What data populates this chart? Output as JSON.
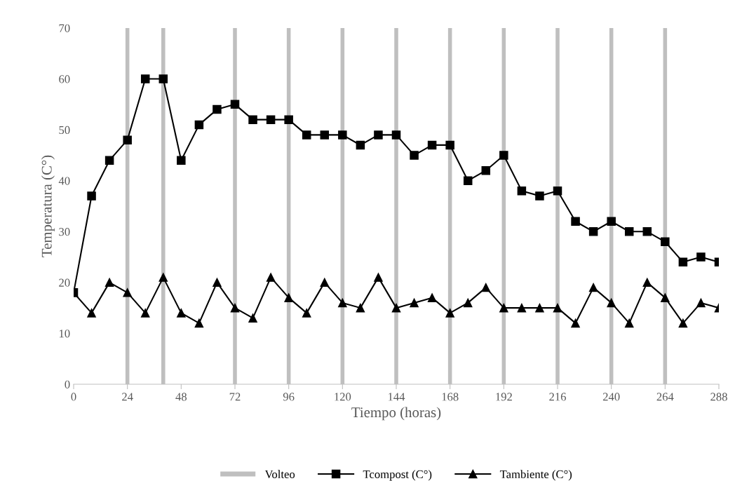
{
  "chart_data": {
    "type": "line",
    "xlabel": "Tiempo (horas)",
    "ylabel": "Temperatura (C°)",
    "x": [
      0,
      8,
      16,
      24,
      32,
      40,
      48,
      56,
      64,
      72,
      80,
      88,
      96,
      104,
      112,
      120,
      128,
      136,
      144,
      152,
      160,
      168,
      176,
      184,
      192,
      200,
      208,
      216,
      224,
      232,
      240,
      248,
      256,
      264,
      272,
      280,
      288
    ],
    "series": [
      {
        "name": "Tcompost (C°)",
        "color": "#000000",
        "marker": "square",
        "values": [
          18,
          37,
          44,
          48,
          60,
          60,
          44,
          51,
          54,
          55,
          52,
          52,
          52,
          49,
          49,
          49,
          47,
          49,
          49,
          45,
          47,
          47,
          40,
          42,
          45,
          38,
          37,
          38,
          32,
          30,
          32,
          30,
          30,
          28,
          24,
          25,
          24
        ]
      },
      {
        "name": "Tambiente (C°)",
        "color": "#000000",
        "marker": "triangle",
        "values": [
          18,
          14,
          20,
          18,
          14,
          21,
          14,
          12,
          20,
          15,
          13,
          21,
          17,
          14,
          20,
          16,
          15,
          21,
          15,
          16,
          17,
          14,
          16,
          19,
          15,
          15,
          15,
          15,
          12,
          19,
          16,
          12,
          20,
          17,
          12,
          16,
          15
        ]
      }
    ],
    "ref_lines": [
      {
        "axis": "x",
        "value": 24,
        "label": "Volteo",
        "color": "#bfbfbf"
      },
      {
        "axis": "x",
        "value": 40,
        "color": "#bfbfbf"
      },
      {
        "axis": "x",
        "value": 72,
        "color": "#bfbfbf"
      },
      {
        "axis": "x",
        "value": 96,
        "color": "#bfbfbf"
      },
      {
        "axis": "x",
        "value": 120,
        "color": "#bfbfbf"
      },
      {
        "axis": "x",
        "value": 144,
        "color": "#bfbfbf"
      },
      {
        "axis": "x",
        "value": 168,
        "color": "#bfbfbf"
      },
      {
        "axis": "x",
        "value": 192,
        "color": "#bfbfbf"
      },
      {
        "axis": "x",
        "value": 216,
        "color": "#bfbfbf"
      },
      {
        "axis": "x",
        "value": 240,
        "color": "#bfbfbf"
      },
      {
        "axis": "x",
        "value": 264,
        "color": "#bfbfbf"
      }
    ],
    "xlim": [
      0,
      288
    ],
    "xticks": [
      0,
      24,
      48,
      72,
      96,
      120,
      144,
      168,
      192,
      216,
      240,
      264,
      288
    ],
    "ylim": [
      0,
      70
    ],
    "yticks": [
      0,
      10,
      20,
      30,
      40,
      50,
      60,
      70
    ],
    "grid": false,
    "legend": "bottom"
  }
}
